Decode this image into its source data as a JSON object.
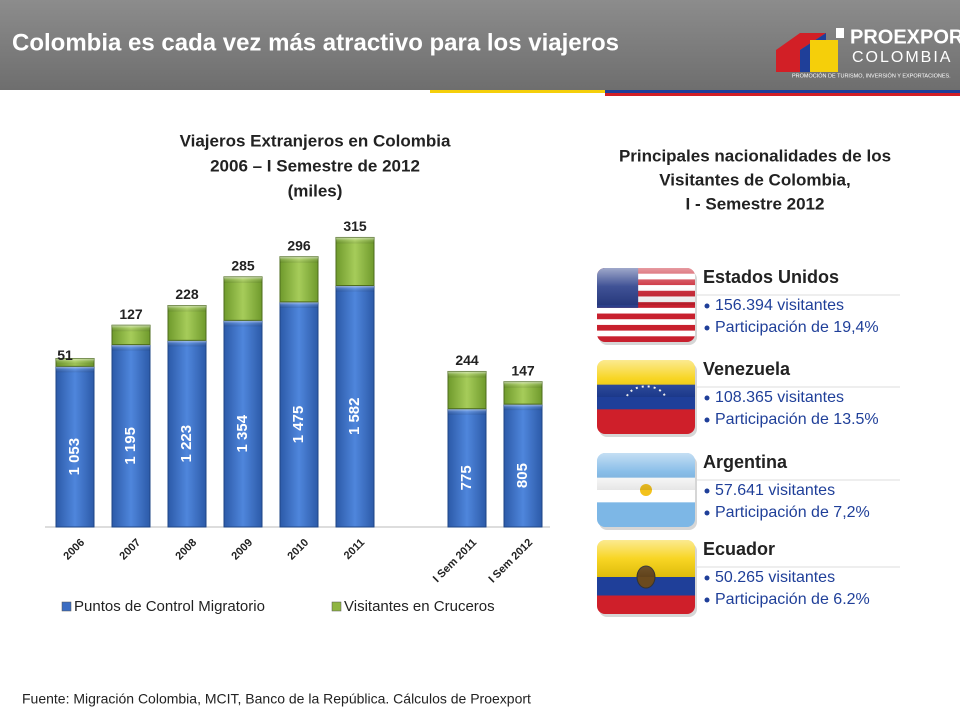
{
  "header": {
    "title": "Colombia es cada vez más atractivo para los viajeros",
    "logo_top": "PROEXPORT",
    "logo_bottom": "COLOMBIA",
    "logo_tagline": "PROMOCIÓN DE TURISMO, INVERSIÓN Y EXPORTACIONES."
  },
  "chart_data": {
    "type": "stacked_bar",
    "title": [
      "Viajeros Extranjeros en Colombia",
      "2006 – I Semestre de 2012",
      "(miles)"
    ],
    "categories": [
      "2006",
      "2007",
      "2008",
      "2009",
      "2010",
      "2011",
      null,
      "I Sem 2011",
      "I Sem 2012"
    ],
    "series": [
      {
        "name": "Puntos de Control Migratorio",
        "color": "#3b6cc2",
        "values": [
          1053,
          1195,
          1223,
          1354,
          1475,
          1582,
          null,
          775,
          805
        ],
        "value_labels": [
          "1 053",
          "1 195",
          "1 223",
          "1 354",
          "1 475",
          "1 582",
          null,
          "775",
          "805"
        ]
      },
      {
        "name": "Visitantes en Cruceros",
        "color": "#8fb542",
        "values": [
          51,
          127,
          228,
          285,
          296,
          315,
          null,
          244,
          147
        ]
      }
    ],
    "legend": "bottom"
  },
  "panel": {
    "title": [
      "Principales nacionalidades de los",
      "Visitantes de Colombia,",
      "I - Semestre 2012"
    ],
    "countries": [
      {
        "name": "Estados Unidos",
        "lines": [
          "156.394 visitantes",
          "Participación de 19,4%"
        ]
      },
      {
        "name": "Venezuela",
        "lines": [
          "108.365 visitantes",
          "Participación de 13.5%"
        ]
      },
      {
        "name": "Argentina",
        "lines": [
          "57.641 visitantes",
          "Participación de 7,2%"
        ]
      },
      {
        "name": "Ecuador",
        "lines": [
          "50.265 visitantes",
          "Participación de 6.2%"
        ]
      }
    ]
  },
  "footer": "Fuente: Migración Colombia, MCIT, Banco de la República. Cálculos de Proexport"
}
